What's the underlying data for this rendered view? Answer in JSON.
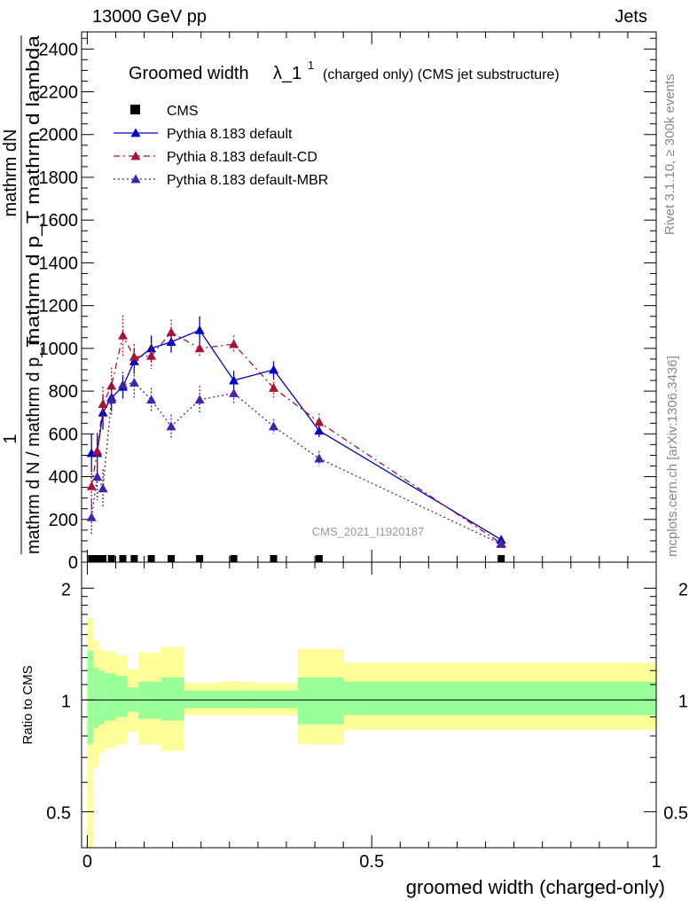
{
  "header": {
    "beam": "13000 GeV pp",
    "category": "Jets",
    "rivet": "Rivet 3.1.10, ≥ 300k events",
    "source": "mcplots.cern.ch [arXiv:1306.3436]",
    "watermark": "CMS_2021_I1920187"
  },
  "chart_data": [
    {
      "type": "line",
      "title_main": "Groomed width",
      "title_sym": "λ_1",
      "title_sup": "1",
      "title_rest": "(charged only) (CMS jet substructure)",
      "ylabel_num": "1",
      "ylabel_num2": "mathrm dN",
      "ylabel_den": "mathrm d N / mathrm d p_T",
      "ylabel_den2": "mathrm d p_T mathrm d lambda",
      "ylim": [
        0,
        2480
      ],
      "yticks": [
        0,
        200,
        400,
        600,
        800,
        1000,
        1200,
        1400,
        1600,
        1800,
        2000,
        2200,
        2400
      ],
      "xlim": [
        -0.01,
        1.0
      ],
      "x": [
        0.0075,
        0.0175,
        0.0275,
        0.0425,
        0.0625,
        0.0825,
        0.1125,
        0.1475,
        0.1975,
        0.2575,
        0.3275,
        0.4075,
        0.7275
      ],
      "series": [
        {
          "name": "CMS",
          "marker": "square",
          "color": "#000000",
          "values": [
            0,
            0,
            0,
            0,
            0,
            0,
            0,
            0,
            0,
            0,
            0,
            0,
            0
          ]
        },
        {
          "name": "Pythia 8.183 default",
          "marker": "triangle",
          "color": "#0000cc",
          "dash": "",
          "values": [
            510,
            510,
            700,
            770,
            820,
            940,
            1000,
            1030,
            1085,
            850,
            900,
            615,
            105
          ],
          "errors": [
            90,
            95,
            80,
            60,
            55,
            60,
            60,
            50,
            65,
            45,
            40,
            30,
            10
          ]
        },
        {
          "name": "Pythia 8.183 default-CD",
          "marker": "triangle",
          "color": "#aa1133",
          "dash": "7,4,2,4",
          "values": [
            355,
            520,
            740,
            825,
            1060,
            960,
            965,
            1075,
            1000,
            1020,
            815,
            655,
            88
          ],
          "errors": [
            110,
            80,
            80,
            85,
            95,
            60,
            60,
            60,
            40,
            40,
            45,
            40,
            10
          ]
        },
        {
          "name": "Pythia 8.183 default-MBR",
          "marker": "triangle",
          "color": "#4422aa",
          "dash": "2,3",
          "values": [
            210,
            400,
            345,
            760,
            830,
            840,
            760,
            635,
            760,
            790,
            635,
            485,
            85
          ],
          "errors": [
            80,
            110,
            90,
            70,
            60,
            70,
            55,
            55,
            65,
            45,
            35,
            35,
            8
          ]
        }
      ]
    },
    {
      "type": "area",
      "ylabel": "Ratio to CMS",
      "xlabel": "groomed width (charged-only)",
      "yscale": "log",
      "ylim": [
        0.4,
        2.35
      ],
      "yticks": [
        0.5,
        1,
        2
      ],
      "ytick_labels": [
        "0.5",
        "1",
        "2"
      ],
      "xticks": [
        0,
        0.5,
        1
      ],
      "xtick_labels": [
        "0",
        "0.5",
        "1"
      ],
      "bin_edges": [
        0.0,
        0.01,
        0.02,
        0.03,
        0.05,
        0.07,
        0.09,
        0.13,
        0.17,
        0.23,
        0.29,
        0.37,
        0.45,
        1.0
      ],
      "band_inner": [
        [
          0.76,
          1.36
        ],
        [
          0.84,
          1.22
        ],
        [
          0.86,
          1.2
        ],
        [
          0.88,
          1.18
        ],
        [
          0.9,
          1.16
        ],
        [
          0.93,
          1.08
        ],
        [
          0.89,
          1.12
        ],
        [
          0.88,
          1.15
        ],
        [
          0.95,
          1.06
        ],
        [
          0.95,
          1.06
        ],
        [
          0.95,
          1.06
        ],
        [
          0.86,
          1.15
        ],
        [
          0.91,
          1.12
        ]
      ],
      "band_outer": [
        [
          0.38,
          1.66
        ],
        [
          0.66,
          1.45
        ],
        [
          0.72,
          1.37
        ],
        [
          0.74,
          1.35
        ],
        [
          0.76,
          1.32
        ],
        [
          0.82,
          1.21
        ],
        [
          0.76,
          1.34
        ],
        [
          0.73,
          1.39
        ],
        [
          0.91,
          1.11
        ],
        [
          0.91,
          1.12
        ],
        [
          0.91,
          1.11
        ],
        [
          0.76,
          1.37
        ],
        [
          0.83,
          1.26
        ]
      ],
      "band_colors": {
        "inner": "#99ff99",
        "outer": "#ffff99"
      }
    }
  ]
}
